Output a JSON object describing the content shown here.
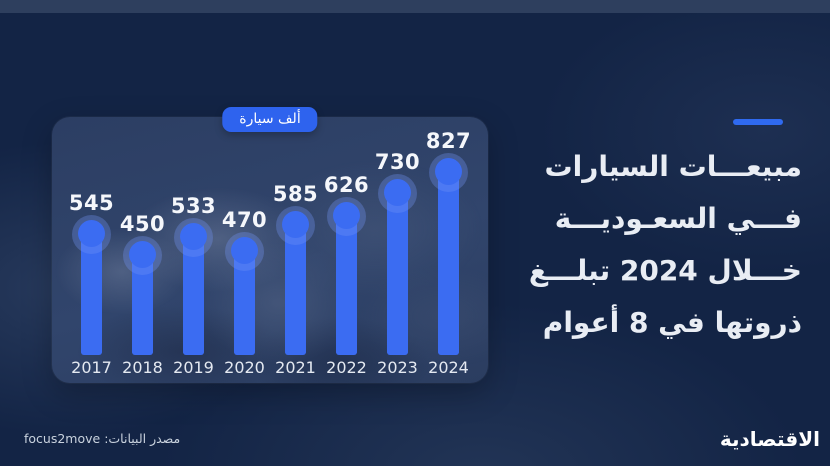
{
  "chart_data": {
    "type": "bar",
    "title": "مبيعات السيارات في السعودية خلال 2024 تبلغ ذروتها في 8 أعوام",
    "unit_label": "ألف سيارة",
    "categories": [
      "2017",
      "2018",
      "2019",
      "2020",
      "2021",
      "2022",
      "2023",
      "2024"
    ],
    "values": [
      545,
      450,
      533,
      470,
      585,
      626,
      730,
      827
    ],
    "ylabel": "ألف سيارة",
    "ylim": [
      0,
      900
    ],
    "grid": false,
    "legend": null,
    "value_labels_shown": true
  },
  "headline": {
    "lines": [
      "مبيعـــات السيارات",
      "فـــي السعـوديـــة",
      "خـــلال 2024 تبلـــغ",
      "ذروتها في 8 أعوام"
    ]
  },
  "footer": {
    "source": "مصدر البيانات: focus2move",
    "brand": "الاقتصادية"
  },
  "colors": {
    "background": "#132445",
    "top_strip": "#2e3f5e",
    "panel": "#2e4066",
    "bar": "#3b6cf2",
    "bar_halo": "rgba(115,150,245,0.33)",
    "pill": "#2e63ee",
    "accent_dash": "#2f6af0",
    "value_text": "#f5f7fb",
    "year_text": "#e4e9f1",
    "headline_text": "#e9edf4"
  }
}
